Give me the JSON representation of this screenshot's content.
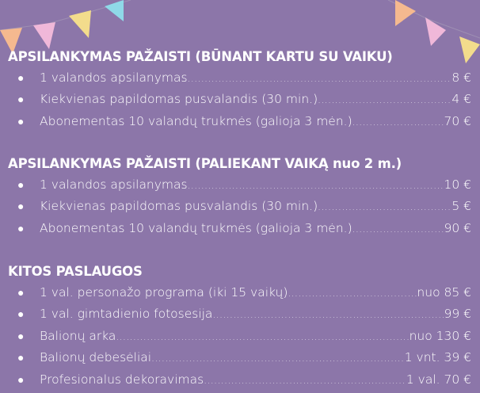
{
  "decoration": {
    "bunting_colors": [
      "#f5b98f",
      "#f0b8d9",
      "#f3dc8c",
      "#8fd9e8"
    ]
  },
  "sections": [
    {
      "title": "APSILANKYMAS PAŽAISTI (BŪNANT KARTU SU VAIKU)",
      "items": [
        {
          "label": "1 valandos apsilanymas",
          "price": "8 €"
        },
        {
          "label": "Kiekvienas papildomas pusvalandis (30 min.)",
          "price": "4 €"
        },
        {
          "label": "Abonementas 10 valandų trukmės (galioja 3 mėn.)",
          "price": "70 €"
        }
      ]
    },
    {
      "title": "APSILANKYMAS PAŽAISTI (PALIEKANT VAIKĄ nuo 2 m.)",
      "items": [
        {
          "label": "1 valandos apsilanymas",
          "price": "10 €"
        },
        {
          "label": "Kiekvienas papildomas pusvalandis (30 min.)",
          "price": "5 €"
        },
        {
          "label": "Abonementas 10 valandų trukmės (galioja 3 mėn.)",
          "price": "90 €"
        }
      ]
    },
    {
      "title": "KITOS PASLAUGOS",
      "items": [
        {
          "label": "1 val. personažo programa (iki 15 vaikų)",
          "price": "nuo 85 €"
        },
        {
          "label": "1 val. gimtadienio fotosesija",
          "price": "99 €"
        },
        {
          "label": "Balionų arka",
          "price": "nuo 130 €"
        },
        {
          "label": "Balionų debesėliai",
          "price": "1 vnt. 39 €"
        },
        {
          "label": "Profesionalus dekoravimas",
          "price": "1 val. 70 €"
        }
      ]
    }
  ]
}
